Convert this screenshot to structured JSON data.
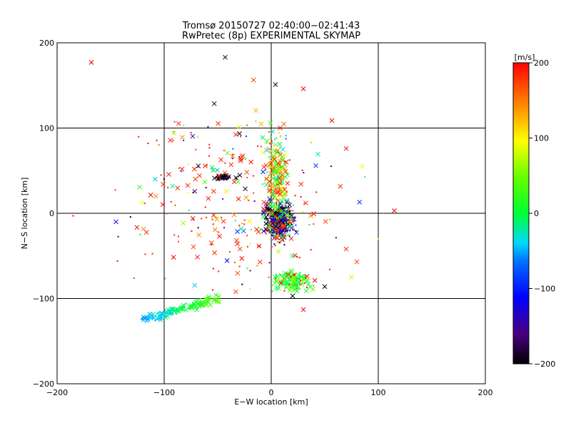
{
  "chart_data": {
    "type": "scatter",
    "title": "Tromsø 20150727 02:40:00−02:41:43",
    "subtitle": "RwPretec (8p) EXPERIMENTAL SKYMAP",
    "xlabel": "E−W location [km]",
    "ylabel": "N−S location [km]",
    "xlim": [
      -200,
      200
    ],
    "ylim": [
      -200,
      200
    ],
    "xticks": [
      -200,
      -100,
      0,
      100,
      200
    ],
    "yticks": [
      -200,
      -100,
      0,
      100,
      200
    ],
    "xtick_labels": [
      "−200",
      "−100",
      "0",
      "100",
      "200"
    ],
    "ytick_labels": [
      "−200",
      "−100",
      "0",
      "100",
      "200"
    ],
    "grid": true,
    "marker_types": [
      "x",
      "dot"
    ],
    "colorbar": {
      "label": "[m/s]",
      "min": -200,
      "max": 200,
      "ticks": [
        200,
        100,
        0,
        -100,
        -200
      ],
      "tick_labels": [
        "200",
        "100",
        "0",
        "−100",
        "−200"
      ],
      "colormap": "rainbow (black → purple → blue → cyan → green → yellow → red)"
    },
    "clusters": [
      {
        "name": "central-dense",
        "x_center": 8,
        "y_center": -10,
        "x_spread": 18,
        "y_spread": 30,
        "velocity_range": [
          -200,
          200
        ]
      },
      {
        "name": "upper-center",
        "x_center": 5,
        "y_center": 50,
        "x_spread": 15,
        "y_spread": 60,
        "velocity_range": [
          -50,
          200
        ]
      },
      {
        "name": "southeast-green",
        "x_center": 20,
        "y_center": -80,
        "x_spread": 25,
        "y_spread": 15,
        "velocity_range": [
          -20,
          80
        ]
      },
      {
        "name": "southwest-tail",
        "x_from": -120,
        "y_from": -125,
        "x_to": -50,
        "y_to": -100,
        "velocity_range": [
          -100,
          40
        ]
      },
      {
        "name": "left-black-group",
        "x_center": -45,
        "y_center": 42,
        "x_spread": 15,
        "y_spread": 5,
        "velocity_range": [
          -200,
          -180
        ]
      },
      {
        "name": "scattered",
        "x_range": [
          -185,
          115
        ],
        "y_range": [
          -115,
          185
        ],
        "velocity_range": [
          -200,
          200
        ]
      }
    ],
    "points": [
      {
        "x": -168,
        "y": 177,
        "v": 200,
        "m": "x"
      },
      {
        "x": -43,
        "y": 183,
        "v": -200,
        "m": "x"
      },
      {
        "x": 4,
        "y": 151,
        "v": -200,
        "m": "x"
      },
      {
        "x": 30,
        "y": 146,
        "v": 200,
        "m": "x"
      },
      {
        "x": -145,
        "y": -10,
        "v": -120,
        "m": "x"
      },
      {
        "x": -185,
        "y": -3,
        "v": 200,
        "m": "dot"
      },
      {
        "x": 115,
        "y": 3,
        "v": 200,
        "m": "x"
      },
      {
        "x": 30,
        "y": -113,
        "v": 200,
        "m": "x"
      },
      {
        "x": 100,
        "y": -30,
        "v": 90,
        "m": "dot"
      },
      {
        "x": 85,
        "y": 55,
        "v": 90,
        "m": "x"
      },
      {
        "x": 70,
        "y": 76,
        "v": 200,
        "m": "x"
      },
      {
        "x": 20,
        "y": -97,
        "v": -200,
        "m": "x"
      },
      {
        "x": 50,
        "y": -86,
        "v": -200,
        "m": "x"
      },
      {
        "x": -115,
        "y": 82,
        "v": 200,
        "m": "dot"
      },
      {
        "x": -100,
        "y": 40,
        "v": -200,
        "m": "dot"
      },
      {
        "x": 75,
        "y": -75,
        "v": 80,
        "m": "x"
      },
      {
        "x": 80,
        "y": -57,
        "v": 170,
        "m": "x"
      }
    ]
  }
}
